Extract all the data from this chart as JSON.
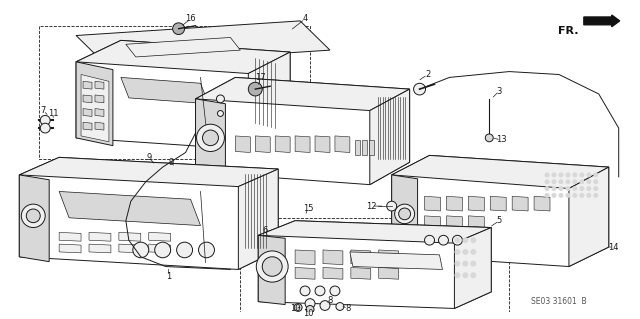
{
  "background_color": "#ffffff",
  "line_color": "#1a1a1a",
  "fig_width": 6.4,
  "fig_height": 3.19,
  "watermark": "SE03 31601  B",
  "fr_label": "FR.",
  "lw": 0.7
}
